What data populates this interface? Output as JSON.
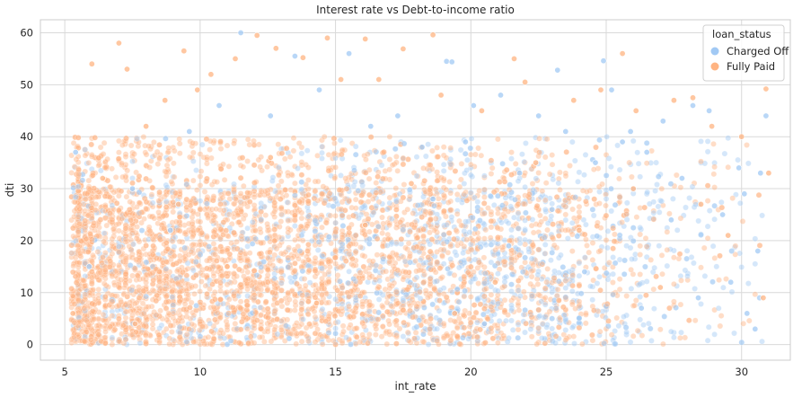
{
  "chart_data": {
    "type": "scatter",
    "title": "Interest rate vs Debt-to-income ratio",
    "xlabel": "int_rate",
    "ylabel": "dti",
    "xlim": [
      4.1,
      31.8
    ],
    "ylim": [
      -3,
      62.5
    ],
    "xticks": [
      "5",
      "10",
      "15",
      "20",
      "25",
      "30"
    ],
    "yticks": [
      "0",
      "10",
      "20",
      "30",
      "40",
      "50",
      "60"
    ],
    "grid": true,
    "legend": {
      "title": "loan_status",
      "placement": "top-right",
      "entries": [
        {
          "label": "Charged Off",
          "color": "#a1c9f4"
        },
        {
          "label": "Fully Paid",
          "color": "#ffb482"
        }
      ]
    },
    "series": [
      {
        "name": "Charged Off",
        "color": "#a1c9f4",
        "points": [
          [
            5.4,
            37
          ],
          [
            5.9,
            15
          ],
          [
            7.5,
            30
          ],
          [
            8.9,
            22
          ],
          [
            9.6,
            41
          ],
          [
            10.7,
            46
          ],
          [
            11.5,
            60
          ],
          [
            12.6,
            44
          ],
          [
            13.5,
            55.5
          ],
          [
            14.4,
            49
          ],
          [
            15.5,
            56
          ],
          [
            16.3,
            42
          ],
          [
            17.3,
            44
          ],
          [
            18.2,
            38
          ],
          [
            19.1,
            54.5
          ],
          [
            19.3,
            54.4
          ],
          [
            19.8,
            39
          ],
          [
            20.1,
            46
          ],
          [
            21.1,
            48
          ],
          [
            21.8,
            33
          ],
          [
            22.5,
            44
          ],
          [
            23.2,
            52.8
          ],
          [
            23.5,
            41
          ],
          [
            24.6,
            35
          ],
          [
            24.9,
            54.6
          ],
          [
            25.2,
            49
          ],
          [
            25.6,
            39
          ],
          [
            25.9,
            41
          ],
          [
            26.5,
            37
          ],
          [
            27.1,
            43
          ],
          [
            27.8,
            32
          ],
          [
            28.2,
            46
          ],
          [
            28.8,
            45
          ],
          [
            29.3,
            25
          ],
          [
            29.9,
            34
          ],
          [
            30.2,
            6
          ],
          [
            30.5,
            3
          ],
          [
            30.7,
            33
          ],
          [
            30.9,
            44
          ],
          [
            30.6,
            18
          ],
          [
            30.1,
            29
          ],
          [
            29.6,
            12
          ],
          [
            28.4,
            9
          ],
          [
            27.4,
            24
          ],
          [
            26.3,
            7
          ],
          [
            24.2,
            14
          ],
          [
            23.0,
            26
          ],
          [
            21.4,
            19
          ],
          [
            20.5,
            4
          ],
          [
            18.6,
            28
          ]
        ]
      },
      {
        "name": "Fully Paid",
        "color": "#ffb482",
        "points": [
          [
            6.0,
            54
          ],
          [
            7.0,
            58
          ],
          [
            7.3,
            53
          ],
          [
            8.0,
            42
          ],
          [
            8.7,
            47
          ],
          [
            9.4,
            56.5
          ],
          [
            9.9,
            49
          ],
          [
            10.4,
            52
          ],
          [
            11.3,
            55
          ],
          [
            12.1,
            59.5
          ],
          [
            12.8,
            57
          ],
          [
            13.8,
            55.2
          ],
          [
            14.7,
            59
          ],
          [
            15.2,
            51
          ],
          [
            16.1,
            58.8
          ],
          [
            16.6,
            51
          ],
          [
            17.5,
            56.9
          ],
          [
            18.6,
            59.6
          ],
          [
            18.9,
            48
          ],
          [
            20.4,
            45
          ],
          [
            21.6,
            55
          ],
          [
            22.0,
            50.5
          ],
          [
            23.8,
            47
          ],
          [
            24.8,
            49
          ],
          [
            25.6,
            56
          ],
          [
            26.1,
            45
          ],
          [
            27.5,
            47
          ],
          [
            28.2,
            47.5
          ],
          [
            28.9,
            42
          ],
          [
            30.0,
            40
          ],
          [
            30.9,
            49.2
          ],
          [
            31.0,
            33
          ],
          [
            30.8,
            9
          ],
          [
            29.5,
            21
          ],
          [
            28.5,
            27
          ],
          [
            27.0,
            11
          ],
          [
            26.0,
            30
          ],
          [
            24.0,
            22
          ],
          [
            22.4,
            35
          ],
          [
            20.9,
            12
          ],
          [
            19.4,
            6
          ],
          [
            17.8,
            31
          ],
          [
            16.1,
            23
          ],
          [
            14.3,
            8
          ],
          [
            12.6,
            36
          ],
          [
            11.0,
            15
          ],
          [
            9.2,
            27
          ],
          [
            7.6,
            4
          ],
          [
            6.4,
            32
          ],
          [
            5.3,
            6
          ]
        ]
      }
    ]
  }
}
